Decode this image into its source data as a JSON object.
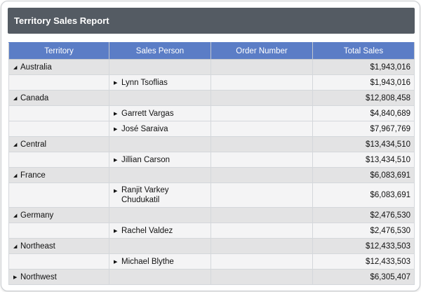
{
  "report": {
    "title": "Territory Sales Report",
    "columns": [
      "Territory",
      "Sales Person",
      "Order Number",
      "Total Sales"
    ]
  },
  "colors": {
    "title_bar": "#545b63",
    "header": "#5b7dc6",
    "group_row": "#e3e3e4",
    "detail_row": "#f4f4f5"
  },
  "icons": {
    "expanded": "collapse-triangle-icon",
    "collapsed": "expand-triangle-icon"
  },
  "rows": [
    {
      "type": "group",
      "expanded": true,
      "territory": "Australia",
      "total": "$1,943,016"
    },
    {
      "type": "detail",
      "person": "Lynn Tsoflias",
      "total": "$1,943,016"
    },
    {
      "type": "group",
      "expanded": true,
      "territory": "Canada",
      "total": "$12,808,458"
    },
    {
      "type": "detail",
      "person": "Garrett Vargas",
      "total": "$4,840,689"
    },
    {
      "type": "detail",
      "person": "José Saraiva",
      "total": "$7,967,769"
    },
    {
      "type": "group",
      "expanded": true,
      "territory": "Central",
      "total": "$13,434,510"
    },
    {
      "type": "detail",
      "person": "Jillian Carson",
      "total": "$13,434,510"
    },
    {
      "type": "group",
      "expanded": true,
      "territory": "France",
      "total": "$6,083,691"
    },
    {
      "type": "detail",
      "person": "Ranjit Varkey Chudukatil",
      "total": "$6,083,691",
      "tall": true
    },
    {
      "type": "group",
      "expanded": true,
      "territory": "Germany",
      "total": "$2,476,530"
    },
    {
      "type": "detail",
      "person": "Rachel Valdez",
      "total": "$2,476,530"
    },
    {
      "type": "group",
      "expanded": true,
      "territory": "Northeast",
      "total": "$12,433,503"
    },
    {
      "type": "detail",
      "person": "Michael Blythe",
      "total": "$12,433,503"
    },
    {
      "type": "group",
      "expanded": false,
      "territory": "Northwest",
      "total": "$6,305,407"
    }
  ]
}
